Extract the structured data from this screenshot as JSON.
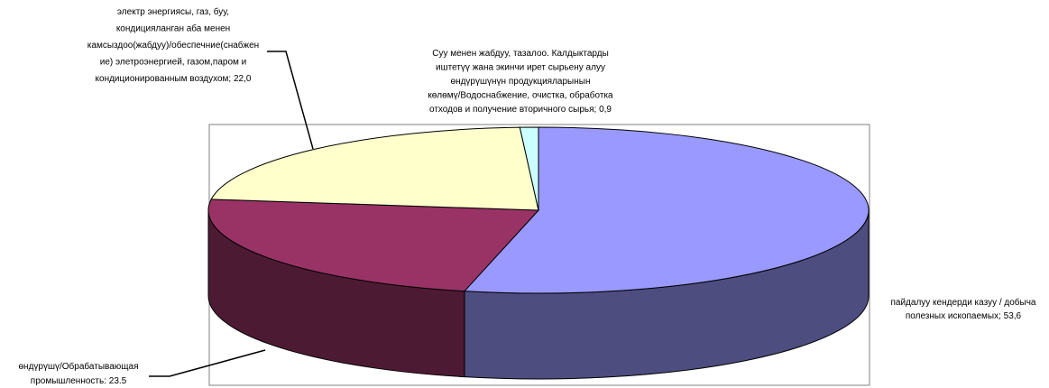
{
  "chart_data": {
    "type": "pie",
    "style": "3d",
    "title": "",
    "legend": "none",
    "slices": [
      {
        "value": 53.6,
        "color": "#9999FF",
        "side_color": "#4D4D80",
        "label_lines": [
          "пайдалуу кендерди казуу / добыча",
          "полезных ископаемых; 53,6"
        ]
      },
      {
        "value": 23.5,
        "color": "#993366",
        "side_color": "#4D1A33",
        "label_lines": [
          "өндүрүшү/Обрабатывающая",
          "промышленность: 23.5"
        ]
      },
      {
        "value": 22.0,
        "color": "#FFFFCC",
        "side_color": "#808066",
        "label_lines": [
          "электр энергиясы, газ, буу,",
          "кондицияланган аба менен",
          "камсыздоо(жабдуу)/обеспечние(снабжен",
          "ие) элетроэнергией, газом,паром и",
          "кондиционированным воздухом; 22,0"
        ]
      },
      {
        "value": 0.9,
        "color": "#CCFFFF",
        "side_color": "#668080",
        "label_lines": [
          "Суу менен жабдуу, тазалоо. Калдыктарды",
          "иштетүү жана экинчи ирет сырьену алуу",
          "өндүрүшүнүн продукцияларынын",
          "көлөмү/Водоснабжение, очистка, обработка",
          "отходов и получение вторичного сырья; 0,9"
        ]
      }
    ]
  }
}
